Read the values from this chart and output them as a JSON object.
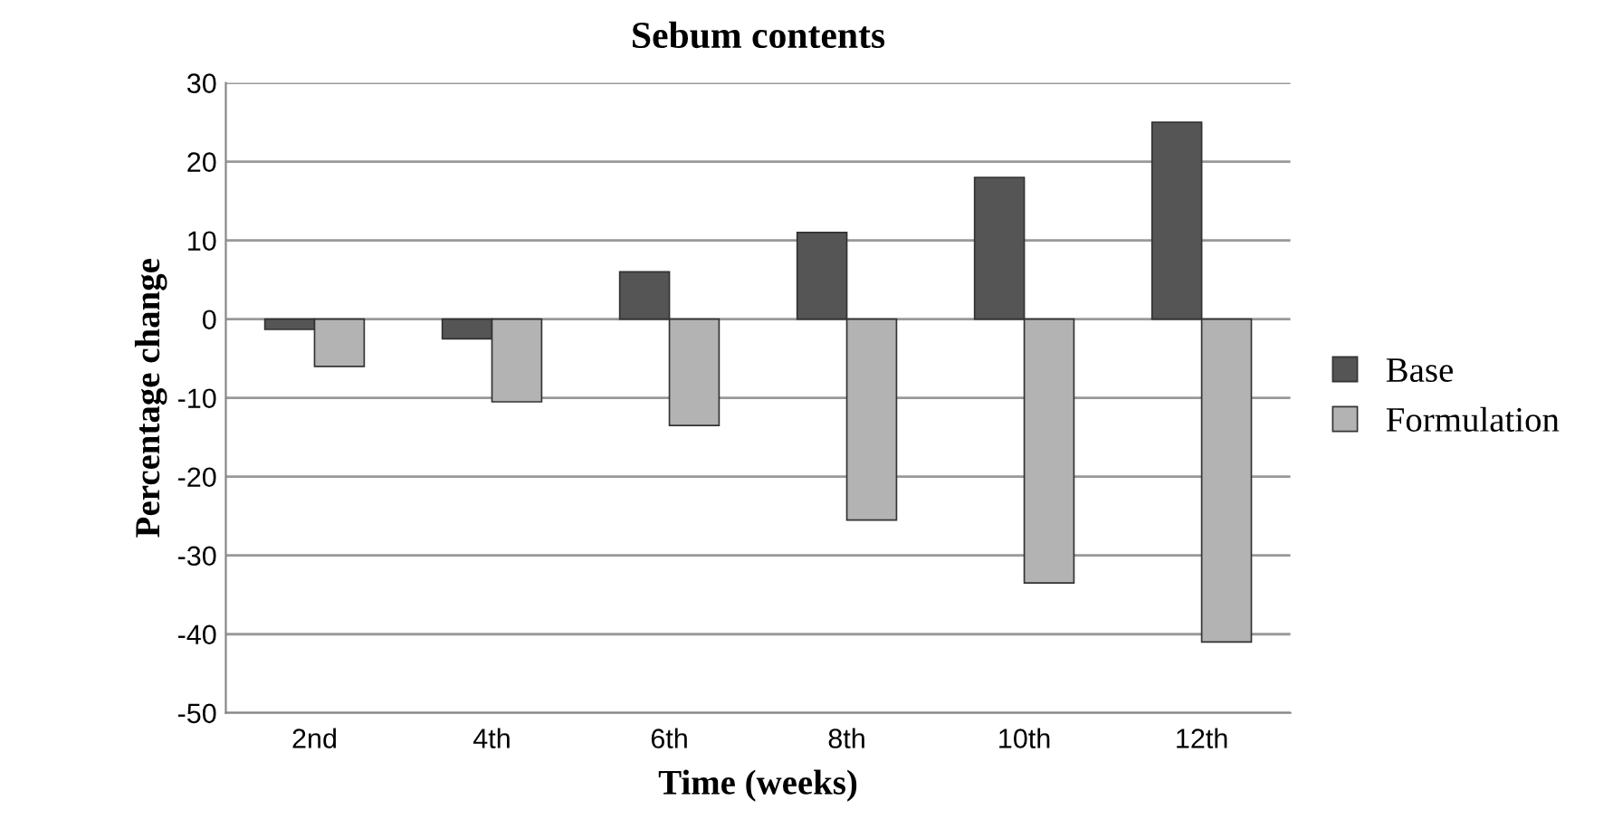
{
  "chart_data": {
    "type": "bar",
    "title": "Sebum contents",
    "xlabel": "Time (weeks)",
    "ylabel": "Percentage change",
    "categories": [
      "2nd",
      "4th",
      "6th",
      "8th",
      "10th",
      "12th"
    ],
    "series": [
      {
        "name": "Base",
        "color": "#555555",
        "values": [
          -1.3,
          -2.5,
          6,
          11,
          18,
          25
        ]
      },
      {
        "name": "Formulation",
        "color": "#b3b3b3",
        "values": [
          -6,
          -10.5,
          -13.5,
          -25.5,
          -33.5,
          -41
        ]
      }
    ],
    "ylim": [
      -50,
      30
    ],
    "yticks": [
      -50,
      -40,
      -30,
      -20,
      -10,
      0,
      10,
      20,
      30
    ],
    "grid": "y",
    "legend": "right"
  }
}
